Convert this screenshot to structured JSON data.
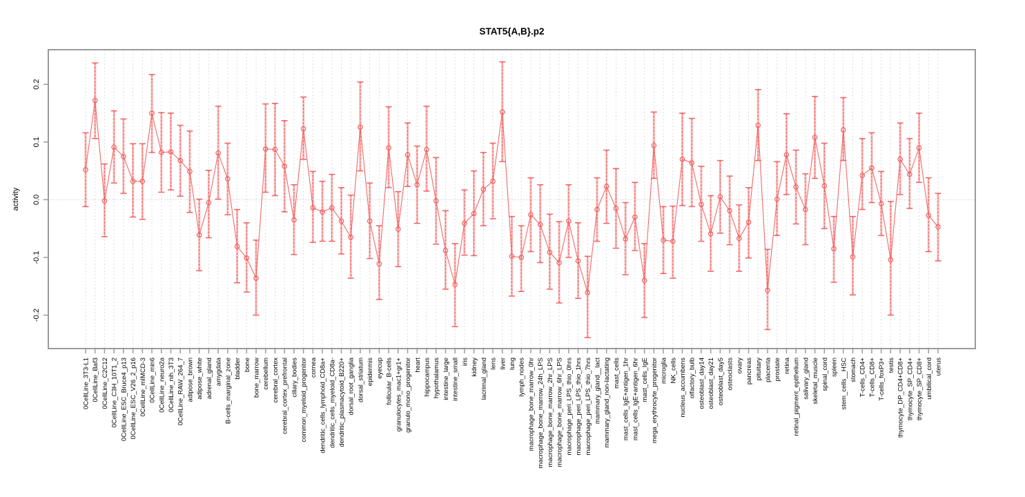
{
  "chart_data": {
    "type": "line",
    "title": "STAT5{A,B}.p2",
    "xlabel": "",
    "ylabel": "activity",
    "ylim": [
      -0.258,
      0.26
    ],
    "yticks": [
      -0.2,
      -0.1,
      0.0,
      0.1,
      0.2
    ],
    "ytick_labels": [
      "-0.2",
      "-0.1",
      "0.0",
      "0.1",
      "0.2"
    ],
    "grid": "dashed vertical gridline per category; dotted horizontal line at 0",
    "legend_position": "none",
    "marker": "open-circle",
    "error_bars": true,
    "colors": {
      "series": "#f25f5f",
      "error_halo": "#f8abab",
      "grid": "#d9d9d9",
      "zero_line": "#c9c9c9",
      "box": "#9a9a9a",
      "text": "#000000"
    },
    "categories": [
      "0CellLine_3T3-L1",
      "0CellLine_Baf3",
      "0CellLine_C2C12",
      "0CellLine_C3H_10T1_2",
      "0CellLine_ESC_Bruce4_p13",
      "0CellLine_ESC_V26_2_p16",
      "0CellLine_mIMCD-3",
      "0CellLine_min6",
      "0CellLine_neuro2a",
      "0CellLine_nih_3T3",
      "0CellLine_RAW_264_7",
      "adipose_brown",
      "adipose_white",
      "adrenal_gland",
      "amygdala",
      "B-cells_marginal_zone",
      "bladder",
      "bone",
      "bone_marrow",
      "cerebellum",
      "cerebral_cortex",
      "cerebral_cortex_prefrontal",
      "ciliary_bodies",
      "common_myeloid_progenitor",
      "cornea",
      "dendritic_cells_lymphoid_CD8a+",
      "dendritic_cells_myeloid_CD8a-",
      "dendritic_plasmacytoid_B220+",
      "dorsal_root_ganglia",
      "dorsal_striatum",
      "epidermis",
      "eyecup",
      "follicular_B-cells",
      "granulocytes_mac1+gr1+",
      "granulo_mono_progenitor",
      "heart",
      "hippocampus",
      "hypothalamus",
      "intestine_large",
      "intestine_small",
      "iris",
      "kidney",
      "lacrimal_gland",
      "lens",
      "liver",
      "lung",
      "lymph_nodes",
      "macrophage_bone_marrow_0hr",
      "macrophage_bone_marrow_24h_LPS",
      "macrophage_bone_marrow_2hr_LPS",
      "macrophage_bone_marrow_6hr_LPS",
      "macrophage_peri_LPS_thio_0hrs",
      "macrophage_peri_LPS_thio_1hrs",
      "macrophage_peri_LPS_thio_7hrs",
      "mammary_gland__lact",
      "mammary_gland_non-lactating",
      "mast_cells",
      "mast_cells_IgE+antigen_1hr",
      "mast_cells_IgE+antigen_6hr",
      "mast_cells_IgE",
      "mega_erythrocyte_progenitor",
      "microglia",
      "NK_cells",
      "nucleus_accumbens",
      "olfactory_bulb",
      "osteoblast_day14",
      "osteoblast_day21",
      "osteoblast_day5",
      "osteoclasts",
      "ovary",
      "pancreas",
      "pituitary",
      "placenta",
      "prostate",
      "retina",
      "retinal_pigment_epithelium",
      "salivary_gland",
      "skeletal_muscle",
      "spinal_cord",
      "spleen",
      "stem_cells__HSC",
      "stomach",
      "T-cells_CD4+",
      "T-cells_CD8+",
      "T-cells_foxP3+",
      "testis",
      "thymocyte_DP_CD4+CD8+",
      "thymocyte_SP_CD4+",
      "thymocyte_SP_CD8+",
      "umbilical_cord",
      "uterus"
    ],
    "series": [
      {
        "name": "activity",
        "values": [
          0.052,
          0.172,
          -0.002,
          0.091,
          0.075,
          0.032,
          0.032,
          0.15,
          0.082,
          0.083,
          0.068,
          0.049,
          -0.061,
          -0.005,
          0.081,
          0.036,
          -0.081,
          -0.101,
          -0.136,
          0.088,
          0.087,
          0.058,
          -0.035,
          0.123,
          -0.014,
          -0.021,
          -0.014,
          -0.037,
          -0.065,
          0.126,
          -0.037,
          -0.111,
          0.09,
          -0.051,
          0.078,
          0.026,
          0.087,
          -0.002,
          -0.088,
          -0.147,
          -0.041,
          -0.024,
          0.018,
          0.032,
          0.152,
          -0.098,
          -0.1,
          -0.026,
          -0.043,
          -0.091,
          -0.109,
          -0.037,
          -0.106,
          -0.161,
          -0.017,
          0.023,
          -0.015,
          -0.068,
          -0.03,
          -0.14,
          0.094,
          -0.07,
          -0.072,
          0.07,
          0.064,
          -0.008,
          -0.059,
          0.005,
          -0.019,
          -0.067,
          -0.039,
          0.129,
          -0.157,
          0.001,
          0.078,
          0.022,
          -0.017,
          0.108,
          0.024,
          -0.085,
          0.121,
          -0.099,
          0.042,
          0.055,
          -0.007,
          -0.104,
          0.07,
          0.044,
          0.09,
          -0.027,
          -0.047
        ],
        "err_lo": [
          -0.012,
          0.106,
          -0.064,
          0.029,
          0.011,
          -0.03,
          -0.034,
          0.082,
          0.013,
          0.017,
          0.006,
          -0.022,
          -0.123,
          -0.066,
          0.001,
          -0.026,
          -0.144,
          -0.16,
          -0.2,
          0.013,
          0.007,
          -0.021,
          -0.095,
          0.07,
          -0.074,
          -0.072,
          -0.072,
          -0.094,
          -0.136,
          0.05,
          -0.102,
          -0.173,
          0.021,
          -0.116,
          0.023,
          -0.041,
          0.015,
          -0.077,
          -0.155,
          -0.22,
          -0.096,
          -0.097,
          -0.045,
          -0.033,
          0.066,
          -0.167,
          -0.159,
          -0.09,
          -0.109,
          -0.155,
          -0.179,
          -0.1,
          -0.171,
          -0.239,
          -0.072,
          -0.041,
          -0.084,
          -0.13,
          -0.088,
          -0.204,
          0.037,
          -0.128,
          -0.136,
          -0.01,
          -0.012,
          -0.072,
          -0.124,
          -0.058,
          -0.078,
          -0.124,
          -0.101,
          0.068,
          -0.225,
          -0.062,
          0.009,
          -0.042,
          -0.078,
          0.037,
          -0.05,
          -0.143,
          0.068,
          -0.165,
          -0.017,
          -0.005,
          -0.062,
          -0.2,
          0.009,
          -0.015,
          0.03,
          -0.09,
          -0.106
        ],
        "err_hi": [
          0.116,
          0.237,
          0.062,
          0.154,
          0.14,
          0.097,
          0.097,
          0.217,
          0.151,
          0.15,
          0.129,
          0.119,
          0.001,
          0.051,
          0.162,
          0.098,
          -0.017,
          -0.04,
          -0.07,
          0.166,
          0.167,
          0.137,
          0.026,
          0.178,
          0.049,
          0.032,
          0.044,
          0.021,
          0.008,
          0.204,
          0.029,
          -0.045,
          0.161,
          0.014,
          0.133,
          0.093,
          0.162,
          0.073,
          -0.019,
          -0.076,
          0.017,
          0.05,
          0.082,
          0.098,
          0.239,
          -0.029,
          -0.045,
          0.038,
          0.026,
          -0.025,
          -0.038,
          0.026,
          -0.04,
          -0.098,
          0.038,
          0.086,
          0.054,
          -0.005,
          0.03,
          -0.076,
          0.152,
          -0.012,
          -0.011,
          0.15,
          0.141,
          0.058,
          0.007,
          0.068,
          0.041,
          -0.009,
          0.021,
          0.191,
          -0.086,
          0.066,
          0.149,
          0.086,
          0.045,
          0.179,
          0.098,
          -0.029,
          0.177,
          -0.029,
          0.106,
          0.116,
          0.049,
          -0.003,
          0.133,
          0.106,
          0.15,
          0.038,
          0.011
        ]
      }
    ]
  }
}
